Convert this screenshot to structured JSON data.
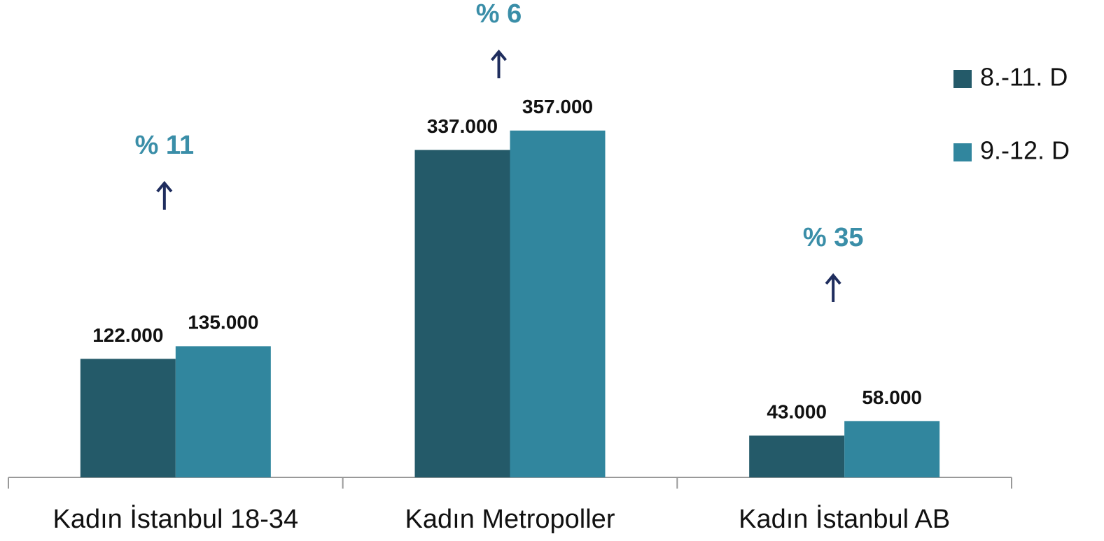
{
  "chart_data": {
    "type": "bar",
    "categories": [
      "Kadın İstanbul 18-34",
      "Kadın Metropoller",
      "Kadın İstanbul AB"
    ],
    "series": [
      {
        "name": "8.-11. D",
        "color": "#245a69",
        "values": [
          122000,
          337000,
          43000
        ],
        "value_labels": [
          "122.000",
          "337.000",
          "43.000"
        ]
      },
      {
        "name": "9.-12. D",
        "color": "#31869e",
        "values": [
          135000,
          357000,
          58000
        ],
        "value_labels": [
          "135.000",
          "357.000",
          "58.000"
        ]
      }
    ],
    "annotations": [
      "% 11",
      "% 6",
      "% 35"
    ],
    "ylim": [
      0,
      400000
    ],
    "legend": "right"
  }
}
